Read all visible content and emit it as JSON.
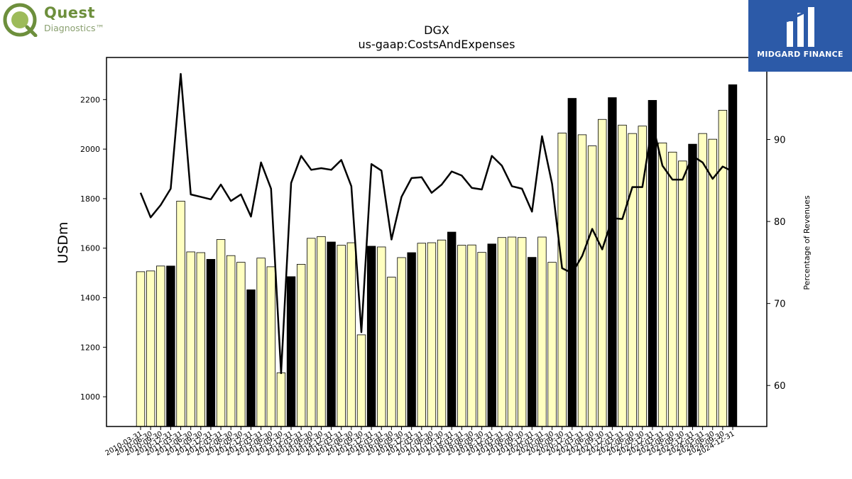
{
  "brand_left": {
    "line1": "Quest",
    "line2": "Diagnostics™"
  },
  "brand_right": {
    "name": "MIDGARD FINANCE"
  },
  "colors": {
    "bar_light": "#ffffc0",
    "bar_dark": "#000000",
    "line": "#000000"
  },
  "chart_data": {
    "type": "bar",
    "title": "DGX",
    "subtitle": "us-gaap:CostsAndExpenses",
    "ylabel": "USDm",
    "y2label": "Percentage of Revenues",
    "ylim": [
      880,
      2370
    ],
    "y2lim": [
      55,
      100
    ],
    "yticks": [
      1000,
      1200,
      1400,
      1600,
      1800,
      2000,
      2200
    ],
    "y2ticks": [
      60,
      70,
      80,
      90
    ],
    "grid": false,
    "categories": [
      "2010-03-31",
      "2010-06-30",
      "2010-09-30",
      "2010-12-31",
      "2011-03-31",
      "2011-06-30",
      "2011-09-30",
      "2011-12-31",
      "2012-03-31",
      "2012-06-30",
      "2012-09-30",
      "2012-12-31",
      "2013-03-31",
      "2013-06-30",
      "2013-09-30",
      "2013-12-31",
      "2014-03-31",
      "2014-06-30",
      "2014-09-30",
      "2014-12-31",
      "2015-03-31",
      "2015-06-30",
      "2015-09-30",
      "2015-12-31",
      "2016-03-31",
      "2016-06-30",
      "2016-09-30",
      "2016-12-31",
      "2017-03-31",
      "2017-06-30",
      "2017-09-30",
      "2017-12-31",
      "2018-03-31",
      "2018-06-30",
      "2018-09-30",
      "2018-12-31",
      "2019-03-31",
      "2019-06-30",
      "2019-09-30",
      "2019-12-31",
      "2020-03-31",
      "2020-06-30",
      "2020-09-30",
      "2020-12-31",
      "2021-03-31",
      "2021-06-30",
      "2021-09-30",
      "2021-12-31",
      "2022-03-31",
      "2022-06-30",
      "2022-09-30",
      "2022-12-31",
      "2023-03-31",
      "2023-06-30",
      "2023-09-30",
      "2023-12-31",
      "2024-03-31",
      "2024-06-30",
      "2024-09-30",
      "2024-12-31"
    ],
    "series": [
      {
        "type": "bar",
        "values": [
          1505,
          1508,
          1528,
          1528,
          1790,
          1585,
          1582,
          1555,
          1635,
          1570,
          1543,
          1432,
          1560,
          1525,
          1097,
          1485,
          1535,
          1640,
          1647,
          1625,
          1612,
          1622,
          1250,
          1608,
          1605,
          1483,
          1562,
          1582,
          1620,
          1622,
          1633,
          1665,
          1612,
          1613,
          1583,
          1617,
          1643,
          1645,
          1643,
          1563,
          1645,
          1543,
          2065,
          2205,
          2058,
          2013,
          2120,
          2208,
          2097,
          2063,
          2093,
          2197,
          2025,
          1988,
          1952,
          2020,
          2063,
          2040,
          2157,
          2260
        ],
        "dark": [
          false,
          false,
          false,
          true,
          false,
          false,
          false,
          true,
          false,
          false,
          false,
          true,
          false,
          false,
          false,
          true,
          false,
          false,
          false,
          true,
          false,
          false,
          false,
          true,
          false,
          false,
          false,
          true,
          false,
          false,
          false,
          true,
          false,
          false,
          false,
          true,
          false,
          false,
          false,
          true,
          false,
          false,
          false,
          true,
          false,
          false,
          false,
          true,
          false,
          false,
          false,
          true,
          false,
          false,
          false,
          true,
          false,
          false,
          false,
          true
        ]
      },
      {
        "type": "line",
        "axis": "y2",
        "values": [
          83.5,
          80.5,
          82.0,
          84.0,
          98.0,
          83.3,
          83.0,
          82.7,
          84.5,
          82.5,
          83.3,
          80.6,
          87.2,
          84.0,
          61.5,
          84.7,
          88.0,
          86.3,
          86.5,
          86.3,
          87.5,
          84.3,
          66.5,
          87.0,
          86.2,
          77.8,
          83.0,
          85.3,
          85.4,
          83.5,
          84.5,
          86.1,
          85.6,
          84.1,
          83.9,
          88.0,
          86.8,
          84.3,
          84.0,
          81.2,
          90.4,
          84.6,
          74.3,
          73.7,
          75.8,
          79.1,
          76.6,
          80.4,
          80.3,
          84.2,
          84.2,
          92.0,
          86.8,
          85.1,
          85.1,
          88.0,
          87.2,
          85.2,
          86.7,
          86.1
        ]
      }
    ]
  }
}
